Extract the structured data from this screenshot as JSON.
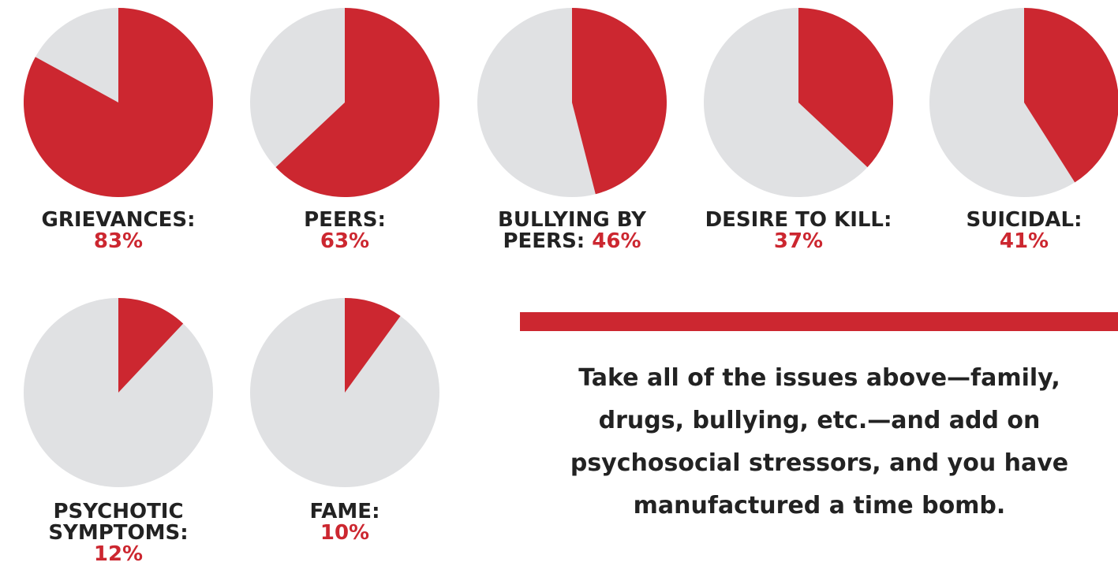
{
  "chart_data": {
    "type": "pie",
    "colors": {
      "value": "#cc2730",
      "rest": "#e0e1e3"
    },
    "pies": [
      {
        "id": "grievances",
        "label": "GRIEVANCES:",
        "value": 83,
        "value_text": "83%"
      },
      {
        "id": "peers",
        "label": "PEERS:",
        "value": 63,
        "value_text": "63%"
      },
      {
        "id": "bullying",
        "label": "BULLYING BY",
        "label_line2": "PEERS:",
        "value": 46,
        "value_text": "46%"
      },
      {
        "id": "desire-to-kill",
        "label": "DESIRE TO KILL:",
        "value": 37,
        "value_text": "37%"
      },
      {
        "id": "suicidal",
        "label": "SUICIDAL:",
        "value": 41,
        "value_text": "41%"
      },
      {
        "id": "psychotic",
        "label": "PSYCHOTIC",
        "label_line2": "SYMPTOMS:",
        "value": 12,
        "value_text": "12%"
      },
      {
        "id": "fame",
        "label": "FAME:",
        "value": 10,
        "value_text": "10%"
      }
    ]
  },
  "quote": {
    "text": "Take all of the issues above—family, drugs, bullying, etc.—and add on psychosocial stressors, and you have manufactured a time bomb."
  }
}
